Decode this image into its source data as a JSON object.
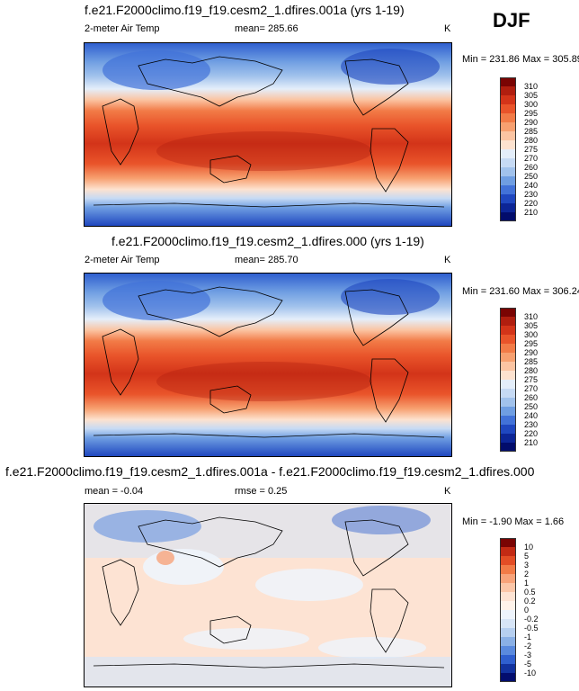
{
  "season": "DJF",
  "panels": [
    {
      "title": "f.e21.F2000climo.f19_f19.cesm2_1.dfires.001a (yrs 1-19)",
      "variable": "2-meter Air Temp",
      "stat": "mean= 285.66",
      "unit": "K",
      "minmax": "Min = 231.86 Max = 305.89",
      "levels": [
        "310",
        "305",
        "300",
        "295",
        "290",
        "285",
        "280",
        "275",
        "270",
        "260",
        "250",
        "240",
        "230",
        "220",
        "210"
      ]
    },
    {
      "title": "f.e21.F2000climo.f19_f19.cesm2_1.dfires.000 (yrs 1-19)",
      "variable": "2-meter Air Temp",
      "stat": "mean= 285.70",
      "unit": "K",
      "minmax": "Min = 231.60 Max = 306.24",
      "levels": [
        "310",
        "305",
        "300",
        "295",
        "290",
        "285",
        "280",
        "275",
        "270",
        "260",
        "250",
        "240",
        "230",
        "220",
        "210"
      ]
    },
    {
      "title": "f.e21.F2000climo.f19_f19.cesm2_1.dfires.001a - f.e21.F2000climo.f19_f19.cesm2_1.dfires.000",
      "stat": "mean =  -0.04",
      "stat2": "rmse =   0.25",
      "unit": "K",
      "minmax": "Min =  -1.90 Max =   1.66",
      "levels": [
        "10",
        "5",
        "3",
        "2",
        "1",
        "0.5",
        "0.2",
        "0",
        "-0.2",
        "-0.5",
        "-1",
        "-2",
        "-3",
        "-5",
        "-10"
      ]
    }
  ],
  "colors": {
    "abs": [
      "#7a0403",
      "#b01e0f",
      "#d33419",
      "#e9542a",
      "#f27b47",
      "#f7a070",
      "#fbc4a2",
      "#fde2cf",
      "#e4eefa",
      "#c6daf4",
      "#a1c2ec",
      "#6f9ee2",
      "#4272d8",
      "#1f47bf",
      "#0c2596",
      "#020c6b"
    ],
    "diff": [
      "#7a0403",
      "#c32a14",
      "#e34d25",
      "#f27b47",
      "#f8a37a",
      "#fbc6a8",
      "#fde3d3",
      "#fff3ea",
      "#eef4fc",
      "#d7e5f7",
      "#b6cff0",
      "#8ab0e6",
      "#5a8ade",
      "#2f5fcf",
      "#12329f",
      "#030d6e"
    ]
  }
}
